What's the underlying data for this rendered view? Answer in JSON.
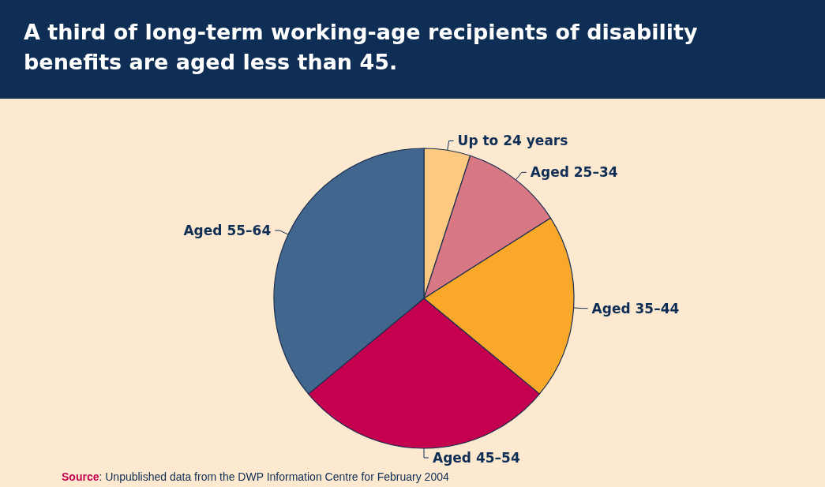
{
  "chart_data": {
    "type": "pie",
    "title": "A third of long-term working-age recipients of disability benefits are aged less than 45.",
    "categories": [
      "Up to 24 years",
      "Aged 25–34",
      "Aged 35–44",
      "Aged 45–54",
      "Aged 55–64"
    ],
    "values": [
      5,
      11,
      20,
      28,
      36
    ],
    "colors": [
      "#fdc880",
      "#d97885",
      "#f9a82a",
      "#c4004f",
      "#41678f"
    ],
    "annotations": [
      "Source: Unpublished data from the DWP Information Centre for February 2004"
    ]
  }
}
